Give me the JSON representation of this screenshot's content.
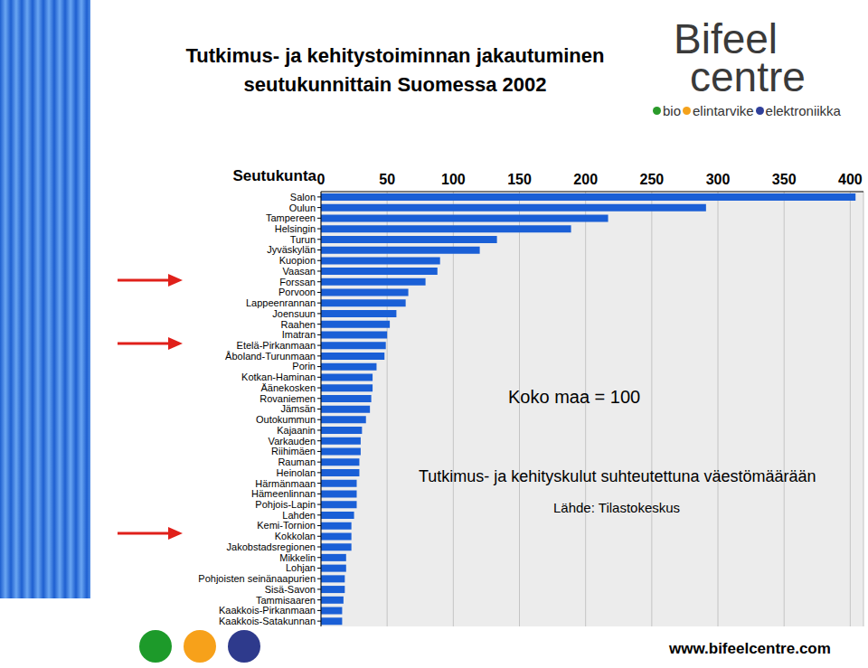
{
  "chart_data": {
    "type": "bar",
    "orientation": "horizontal",
    "title": "Tutkimus- ja kehitystoiminnan jakautuminen seutukunnittain Suomessa 2002",
    "y_label": "Seutukunta",
    "categories": [
      "Salon",
      "Oulun",
      "Tampereen",
      "Helsingin",
      "Turun",
      "Jyväskylän",
      "Kuopion",
      "Vaasan",
      "Forssan",
      "Porvoon",
      "Lappeenrannan",
      "Joensuun",
      "Raahen",
      "Imatran",
      "Etelä-Pirkanmaan",
      "Åboland-Turunmaan",
      "Porin",
      "Kotkan-Haminan",
      "Äänekosken",
      "Rovaniemen",
      "Jämsän",
      "Outokummun",
      "Kajaanin",
      "Varkauden",
      "Riihimäen",
      "Rauman",
      "Heinolan",
      "Härmänmaan",
      "Hämeenlinnan",
      "Pohjois-Lapin",
      "Lahden",
      "Kemi-Tornion",
      "Kokkolan",
      "Jakobstadsregionen",
      "Mikkelin",
      "Lohjan",
      "Pohjoisten seinänaapurien",
      "Sisä-Savon",
      "Tammisaaren",
      "Kaakkois-Pirkanmaan",
      "Kaakkois-Satakunnan"
    ],
    "values": [
      404,
      291,
      217,
      189,
      133,
      120,
      90,
      88,
      79,
      66,
      64,
      57,
      52,
      50,
      49,
      48,
      42,
      39,
      39,
      38,
      37,
      34,
      31,
      30,
      30,
      29,
      29,
      27,
      27,
      27,
      25,
      23,
      23,
      23,
      19,
      19,
      18,
      18,
      17,
      16,
      16
    ],
    "color": "#1a5fd6",
    "xlim": [
      0,
      410
    ],
    "xticks": [
      0,
      50,
      100,
      150,
      200,
      250,
      300,
      350,
      400
    ],
    "grid": true,
    "annotations": [
      "Koko maa = 100",
      "Tutkimus- ja kehityskulut suhteutettuna väestömäärään",
      "Lähde: Tilastokeskus"
    ]
  },
  "logo": {
    "lines": [
      "Bifeel",
      "centre"
    ],
    "tagline": [
      "bio",
      "elintarvike",
      "elektroniikka"
    ]
  },
  "url": "www.bifeelcentre.com"
}
